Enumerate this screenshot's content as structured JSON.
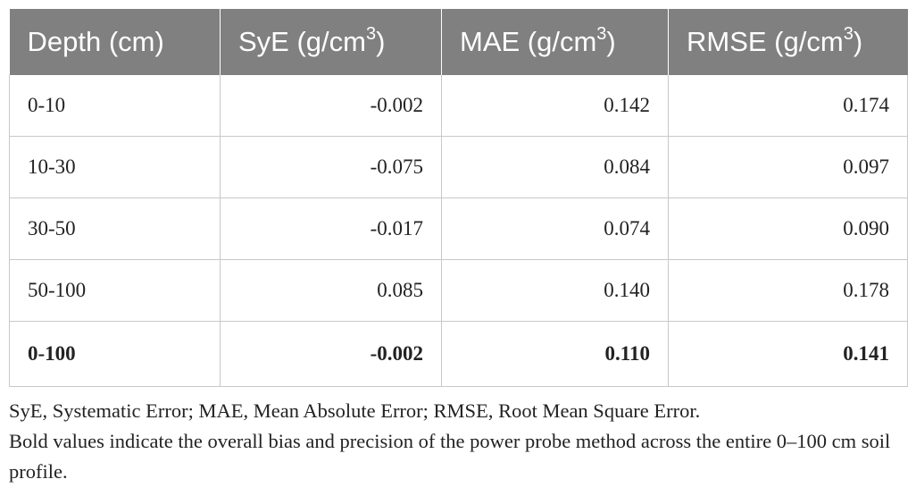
{
  "table": {
    "headers": [
      {
        "text": "Depth (cm)",
        "sup": ""
      },
      {
        "text": "SyE (g/cm",
        "sup": "3",
        "close": ")"
      },
      {
        "text": "MAE (g/cm",
        "sup": "3",
        "close": ")"
      },
      {
        "text": "RMSE (g/cm",
        "sup": "3",
        "close": ")"
      }
    ],
    "rows": [
      {
        "depth": "0-10",
        "sye": "-0.002",
        "mae": "0.142",
        "rmse": "0.174"
      },
      {
        "depth": "10-30",
        "sye": "-0.075",
        "mae": "0.084",
        "rmse": "0.097"
      },
      {
        "depth": "30-50",
        "sye": "-0.017",
        "mae": "0.074",
        "rmse": "0.090"
      },
      {
        "depth": "50-100",
        "sye": "0.085",
        "mae": "0.140",
        "rmse": "0.178"
      },
      {
        "depth": "0-100",
        "sye": "-0.002",
        "mae": "0.110",
        "rmse": "0.141"
      }
    ]
  },
  "notes": {
    "abbreviations": "SyE, Systematic Error; MAE, Mean Absolute Error; RMSE, Root Mean Square Error.",
    "bold_note": "Bold values indicate the overall bias and precision of the power probe method across the entire 0–100 cm soil profile."
  },
  "colors": {
    "header_bg": "#808080",
    "header_text": "#ffffff",
    "grid": "#c8c8c8",
    "body_text": "#222222"
  }
}
